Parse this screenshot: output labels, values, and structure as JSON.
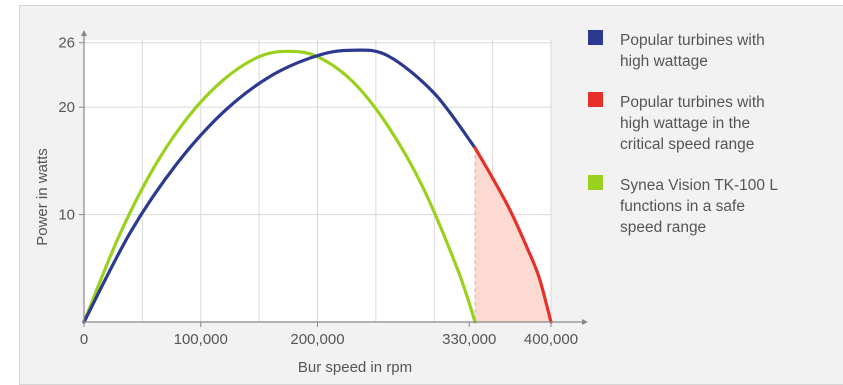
{
  "chart_data": {
    "type": "line",
    "xlabel": "Bur speed in rpm",
    "ylabel": "Power in watts",
    "xlim": [
      0,
      430000
    ],
    "ylim": [
      0,
      27
    ],
    "x_ticks": [
      0,
      100000,
      200000,
      330000,
      400000
    ],
    "x_tick_labels": [
      "0",
      "100,000",
      "200,000",
      "330,000",
      "400,000"
    ],
    "y_ticks": [
      10,
      20,
      26
    ],
    "y_tick_labels": [
      "10",
      "20",
      "26"
    ],
    "vertical_grid": [
      0,
      50000,
      100000,
      150000,
      200000,
      250000,
      300000,
      350000,
      400000
    ],
    "horizontal_grid": [
      10,
      20,
      26
    ],
    "grid": true,
    "critical_speed_threshold": 335000,
    "series": [
      {
        "name": "Popular turbines with high wattage",
        "color": "#2b3990",
        "peak_x": 230000,
        "peak_y": 25.3,
        "x": [
          0,
          40000,
          80000,
          120000,
          160000,
          200000,
          230000,
          260000,
          300000,
          335000
        ],
        "y": [
          0,
          8.4,
          14.8,
          19.6,
          22.9,
          24.8,
          25.3,
          24.8,
          21.3,
          16.2
        ]
      },
      {
        "name": "Popular turbines with high wattage in the critical speed range",
        "color": "#e8302a",
        "x": [
          335000,
          350000,
          365000,
          380000,
          390000,
          400000
        ],
        "y": [
          16.2,
          13.4,
          10.4,
          6.8,
          4.1,
          0
        ]
      },
      {
        "name": "Synea Vision TK-100 L functions in a safe speed range",
        "color": "#9ad01e",
        "peak_x": 175000,
        "peak_y": 25.2,
        "x": [
          0,
          30000,
          60000,
          90000,
          120000,
          150000,
          175000,
          200000,
          230000,
          260000,
          290000,
          320000,
          335000
        ],
        "y": [
          0,
          8.0,
          14.4,
          19.2,
          22.6,
          24.7,
          25.2,
          24.7,
          22.4,
          18.3,
          12.6,
          4.9,
          0
        ]
      }
    ],
    "critical_fill_color": "#fcd9d1"
  },
  "legend": [
    {
      "label_lines": [
        "Popular turbines with",
        "high wattage"
      ],
      "color": "#2b3990"
    },
    {
      "label_lines": [
        "Popular turbines with",
        "high wattage in the",
        "critical speed range"
      ],
      "color": "#e8302a"
    },
    {
      "label_lines": [
        "Synea Vision TK-100 L",
        "functions in a safe",
        "speed range"
      ],
      "color": "#9ad01e"
    }
  ]
}
